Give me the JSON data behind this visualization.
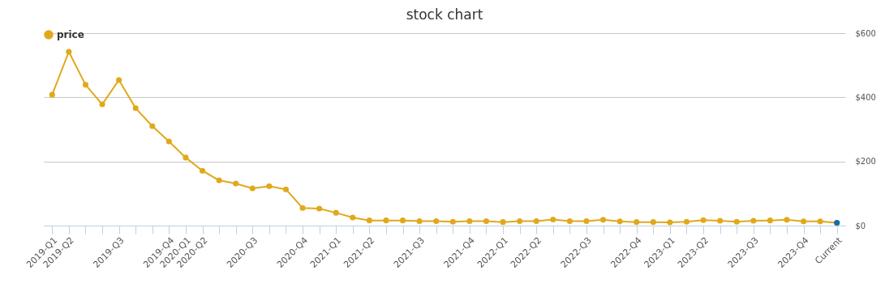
{
  "chart_data": {
    "type": "line",
    "title": "stock chart",
    "categories": [
      "2019-Q1",
      "2019-Q2",
      null,
      null,
      "2019-Q3",
      null,
      null,
      "2019-Q4",
      "2020-Q1",
      "2020-Q2",
      null,
      null,
      "2020-Q3",
      null,
      null,
      "2020-Q4",
      null,
      "2021-Q1",
      null,
      "2021-Q2",
      null,
      null,
      "2021-Q3",
      null,
      null,
      "2021-Q4",
      null,
      "2022-Q1",
      null,
      "2022-Q2",
      null,
      null,
      "2022-Q3",
      null,
      null,
      "2022-Q4",
      null,
      "2023-Q1",
      null,
      "2023-Q2",
      null,
      null,
      "2023-Q3",
      null,
      null,
      "2023-Q4",
      null,
      "Current"
    ],
    "series": [
      {
        "name": "price",
        "color": "#e0a91b",
        "colors": [
          "#e0a91b",
          "#e0a91b",
          "#e0a91b",
          "#e0a91b",
          "#e0a91b",
          "#e0a91b",
          "#e0a91b",
          "#e0a91b",
          "#e0a91b",
          "#e0a91b",
          "#e0a91b",
          "#e0a91b",
          "#e0a91b",
          "#e0a91b",
          "#e0a91b",
          "#e0a91b",
          "#e0a91b",
          "#e0a91b",
          "#e0a91b",
          "#e0a91b",
          "#e0a91b",
          "#e0a91b",
          "#e0a91b",
          "#e0a91b",
          "#e0a91b",
          "#e0a91b",
          "#e0a91b",
          "#e0a91b",
          "#e0a91b",
          "#e0a91b",
          "#e0a91b",
          "#e0a91b",
          "#e0a91b",
          "#e0a91b",
          "#e0a91b",
          "#e0a91b",
          "#e0a91b",
          "#e0a91b",
          "#e0a91b",
          "#e0a91b",
          "#e0a91b",
          "#e0a91b",
          "#e0a91b",
          "#e0a91b",
          "#e0a91b",
          "#e0a91b",
          "#e0a91b",
          "#0b6fb0"
        ],
        "values": [
          408,
          542,
          439,
          378,
          454,
          366,
          310,
          262,
          212,
          171,
          141,
          131,
          116,
          123,
          113,
          55,
          53,
          40,
          25,
          16,
          16,
          16,
          14,
          14,
          12,
          14,
          14,
          11,
          14,
          14,
          19,
          14,
          14,
          18,
          13,
          11,
          11,
          10,
          12,
          17,
          15,
          12,
          15,
          16,
          18,
          13,
          13,
          9
        ]
      }
    ],
    "ylim": [
      0,
      600
    ],
    "yticks": [
      {
        "value": 0,
        "label": "$0"
      },
      {
        "value": 200,
        "label": "$200"
      },
      {
        "value": 400,
        "label": "$400"
      },
      {
        "value": 600,
        "label": "$600"
      }
    ],
    "grid": "y",
    "legend": "top",
    "marker": "circle",
    "line_style": "solid"
  }
}
